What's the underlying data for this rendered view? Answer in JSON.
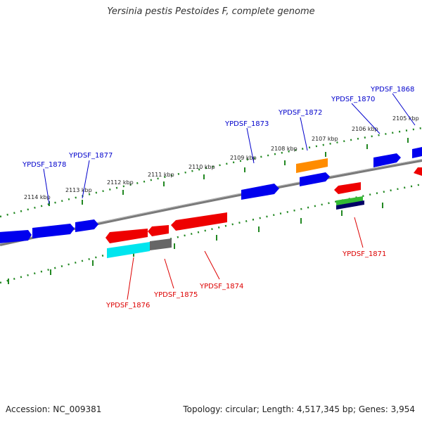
{
  "title": "Yersinia pestis Pestoides F, complete genome",
  "accession": "Accession: NC_009381",
  "summary": "Topology: circular; Length: 4,517,345 bp; Genes: 3,954",
  "colors": {
    "forward": "#0000ee",
    "reverse": "#ee0000",
    "backbone": "#888888",
    "ticks": "#228822",
    "orange": "#ff8c00",
    "cyan": "#00e5ee",
    "gray": "#666666",
    "green": "#33bb33",
    "navy": "#000066"
  },
  "kbp_ticks": [
    "2114 kbp",
    "2113 kbp",
    "2112 kbp",
    "2111 kbp",
    "2110 kbp",
    "2109 kbp",
    "2108 kbp",
    "2107 kbp",
    "2106 kbp",
    "2105 kbp"
  ],
  "forward_labels": [
    "YPDSF_1878",
    "YPDSF_1877",
    "YPDSF_1873",
    "YPDSF_1872",
    "YPDSF_1870",
    "YPDSF_1868"
  ],
  "reverse_labels": [
    "YPDSF_1876",
    "YPDSF_1875",
    "YPDSF_1874",
    "YPDSF_1871"
  ]
}
